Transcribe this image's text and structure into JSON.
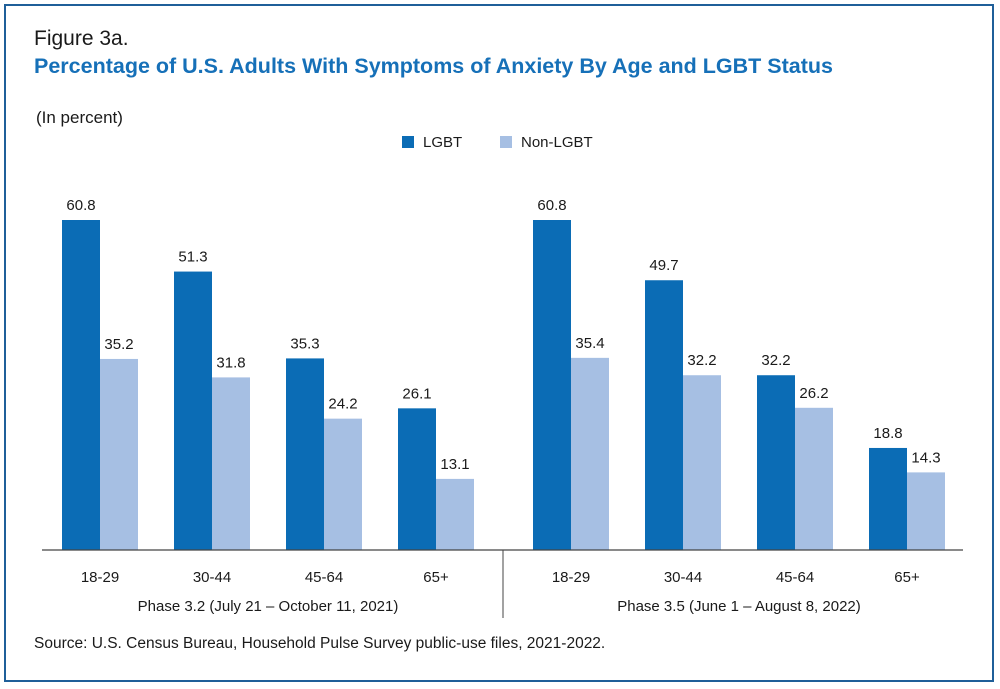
{
  "figure": {
    "label": "Figure 3a.",
    "title": "Percentage of U.S. Adults With Symptoms of Anxiety By Age and LGBT Status",
    "subtitle": "(In percent)",
    "source": "Source: U.S. Census Bureau, Household Pulse Survey public-use files, 2021-2022."
  },
  "colors": {
    "lgbt": "#0b6cb5",
    "non_lgbt": "#a6bfe3",
    "title": "#1670b8",
    "border": "#1f5f99"
  },
  "chart_data": {
    "type": "bar",
    "title": "Percentage of U.S. Adults With Symptoms of Anxiety By Age and LGBT Status",
    "ylabel": "",
    "xlabel": "",
    "ylim": [
      0,
      65
    ],
    "grid": false,
    "legend_position": "top-center",
    "legend": [
      "LGBT",
      "Non-LGBT"
    ],
    "groups": [
      {
        "name": "Phase 3.2 (July 21 – October 11, 2021)",
        "categories": [
          "18-29",
          "30-44",
          "45-64",
          "65+"
        ],
        "series": [
          {
            "name": "LGBT",
            "values": [
              60.8,
              51.3,
              35.3,
              26.1
            ]
          },
          {
            "name": "Non-LGBT",
            "values": [
              35.2,
              31.8,
              24.2,
              13.1
            ]
          }
        ]
      },
      {
        "name": "Phase 3.5 (June 1 – August 8, 2022)",
        "categories": [
          "18-29",
          "30-44",
          "45-64",
          "65+"
        ],
        "series": [
          {
            "name": "LGBT",
            "values": [
              60.8,
              49.7,
              32.2,
              18.8
            ]
          },
          {
            "name": "Non-LGBT",
            "values": [
              35.4,
              32.2,
              26.2,
              14.3
            ]
          }
        ]
      }
    ]
  }
}
